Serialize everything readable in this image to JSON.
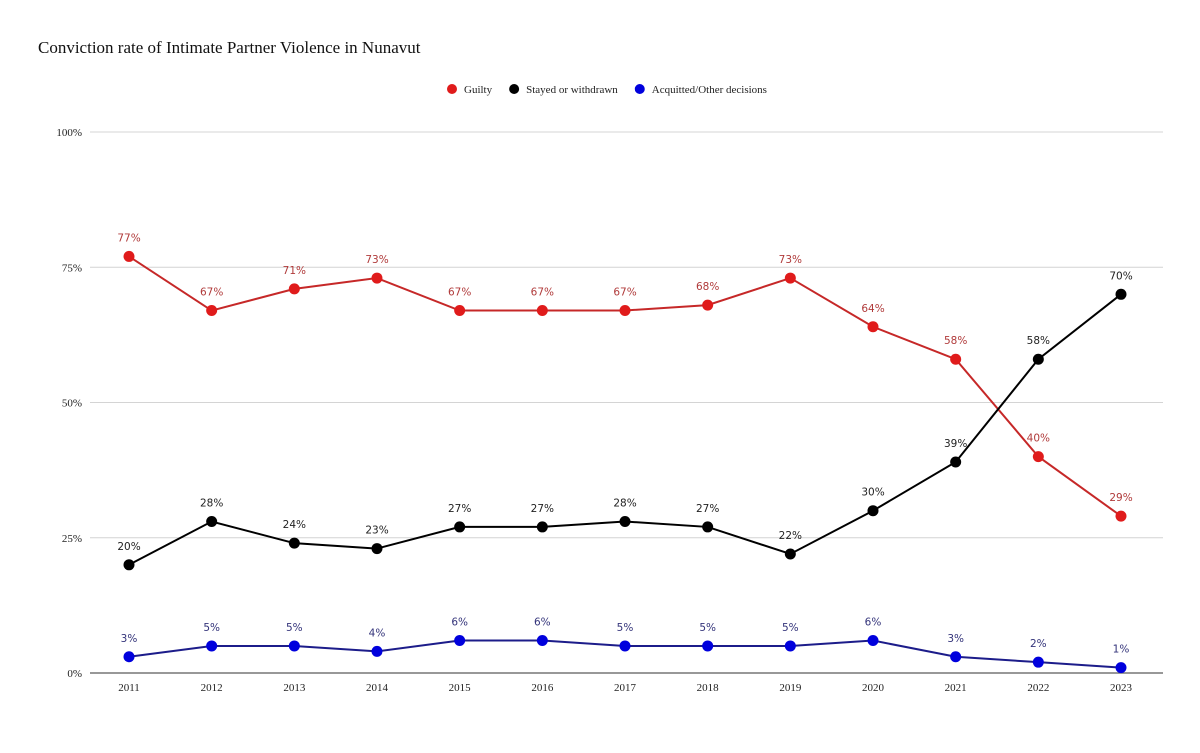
{
  "chart_data": {
    "type": "line",
    "title": "Conviction rate of Intimate Partner Violence in Nunavut",
    "xlabel": "",
    "ylabel": "",
    "categories": [
      "2011",
      "2012",
      "2013",
      "2014",
      "2015",
      "2016",
      "2017",
      "2018",
      "2019",
      "2020",
      "2021",
      "2022",
      "2023"
    ],
    "ylim": [
      0,
      100
    ],
    "yticks": [
      0,
      25,
      50,
      75,
      100
    ],
    "ytick_labels": [
      "0%",
      "25%",
      "50%",
      "75%",
      "100%"
    ],
    "grid": true,
    "legend_position": "top",
    "series": [
      {
        "name": "Guilty",
        "dot_color": "#e01b1b",
        "line_color": "#c62828",
        "label_color": "#b03a3a",
        "values": [
          77,
          67,
          71,
          73,
          67,
          67,
          67,
          68,
          73,
          64,
          58,
          40,
          29
        ]
      },
      {
        "name": "Stayed or withdrawn",
        "dot_color": "#000000",
        "line_color": "#000000",
        "label_color": "#222222",
        "values": [
          20,
          28,
          24,
          23,
          27,
          27,
          28,
          27,
          22,
          30,
          39,
          58,
          70
        ]
      },
      {
        "name": "Acquitted/Other decisions",
        "dot_color": "#0000dd",
        "line_color": "#1c1c8a",
        "label_color": "#33337a",
        "values": [
          3,
          5,
          5,
          4,
          6,
          6,
          5,
          5,
          5,
          6,
          3,
          2,
          1
        ]
      }
    ]
  }
}
